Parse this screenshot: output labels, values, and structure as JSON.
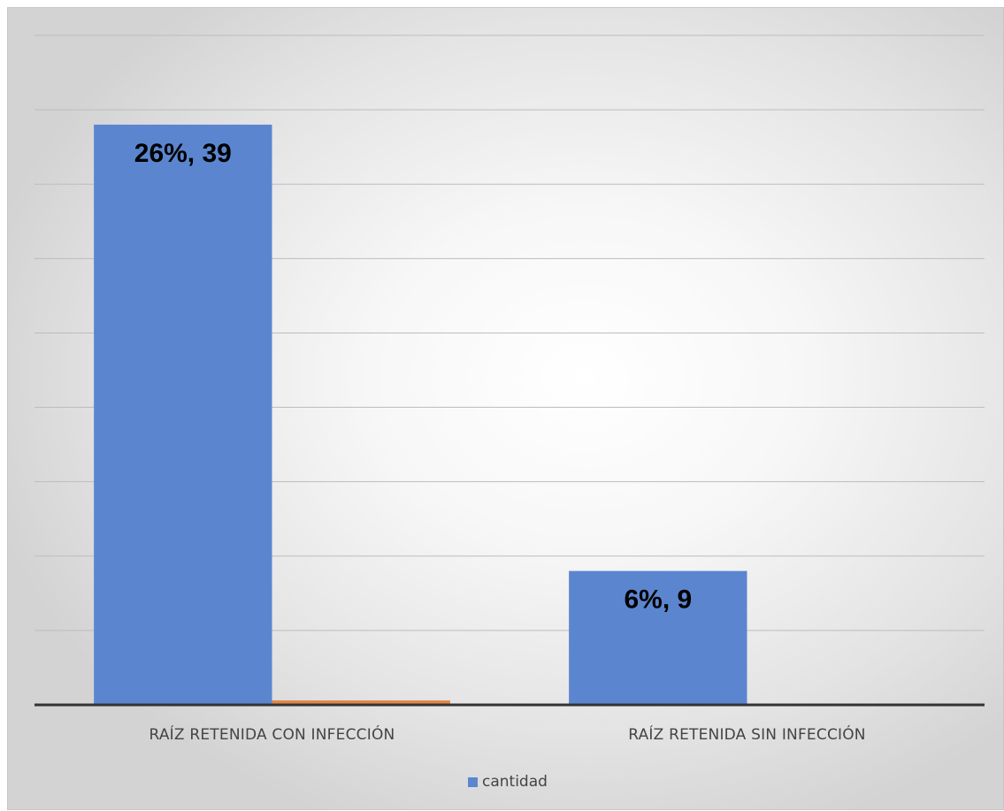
{
  "chart_data": {
    "type": "bar",
    "categories": [
      "RAÍZ RETENIDA CON INFECCIÓN",
      "RAÍZ RETENIDA SIN INFECCIÓN"
    ],
    "series": [
      {
        "name": "cantidad",
        "values": [
          39,
          9
        ],
        "labels": [
          "26%, 39",
          "6%, 9"
        ],
        "color": "#5b86cf"
      },
      {
        "name": "",
        "values": [
          0.3,
          0
        ],
        "labels": [
          "",
          ""
        ],
        "color": "#e0874a"
      }
    ],
    "ylim": [
      0,
      45
    ],
    "ytick_step": 5,
    "grid": true,
    "legend": {
      "position": "bottom",
      "entries": [
        "cantidad"
      ]
    },
    "title": "",
    "xlabel": "",
    "ylabel": ""
  }
}
